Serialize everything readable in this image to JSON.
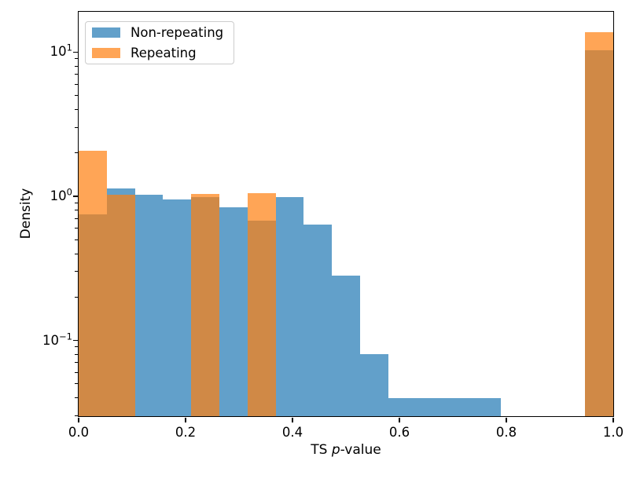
{
  "chart_data": {
    "type": "bar",
    "subtype": "histogram",
    "title": "",
    "xlabel_parts": [
      {
        "text": "TS ",
        "italic": false
      },
      {
        "text": "p",
        "italic": true
      },
      {
        "text": "-value",
        "italic": false
      }
    ],
    "ylabel": "Density",
    "y_scale": "log",
    "x_lim": [
      0.0,
      1.0
    ],
    "y_lim": [
      0.0298,
      19.08
    ],
    "grid": false,
    "legend_position": "upper left",
    "x_ticks": [
      {
        "value": 0.0,
        "label": "0.0"
      },
      {
        "value": 0.2,
        "label": "0.2"
      },
      {
        "value": 0.4,
        "label": "0.4"
      },
      {
        "value": 0.6,
        "label": "0.6"
      },
      {
        "value": 0.8,
        "label": "0.8"
      },
      {
        "value": 1.0,
        "label": "1.0"
      }
    ],
    "y_ticks": [
      {
        "value": 0.1,
        "base": "10",
        "exponent": "−1"
      },
      {
        "value": 1.0,
        "base": "10",
        "exponent": "0"
      },
      {
        "value": 10.0,
        "base": "10",
        "exponent": "1"
      }
    ],
    "bin_edges": [
      0.0,
      0.0526,
      0.1053,
      0.1579,
      0.2105,
      0.2632,
      0.3158,
      0.3684,
      0.4211,
      0.4737,
      0.5263,
      0.5789,
      0.6316,
      0.6842,
      0.7368,
      0.7895,
      0.8421,
      0.8947,
      0.9474,
      1.0
    ],
    "series": [
      {
        "name": "Non-repeating",
        "color": "#1f77b4",
        "alpha": 0.7,
        "densities": [
          0.75,
          1.14,
          1.03,
          0.95,
          0.99,
          0.84,
          0.68,
          0.99,
          0.64,
          0.28,
          0.08,
          0.04,
          0.04,
          0.04,
          0.04,
          0,
          0,
          0,
          10.3
        ]
      },
      {
        "name": "Repeating",
        "color": "#ff7f0e",
        "alpha": 0.7,
        "densities": [
          2.08,
          1.03,
          0,
          0,
          1.04,
          0,
          1.05,
          0,
          0,
          0,
          0,
          0,
          0,
          0,
          0,
          0,
          0,
          0,
          13.7
        ]
      }
    ]
  }
}
